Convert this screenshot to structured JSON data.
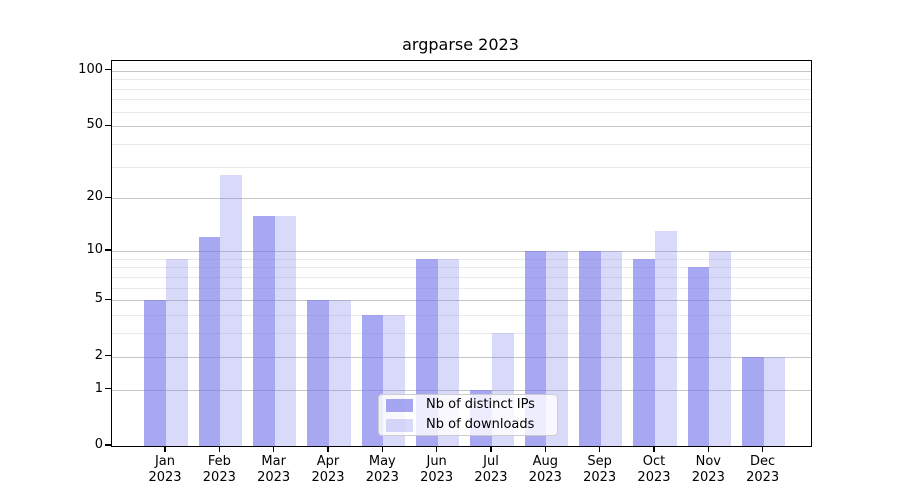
{
  "chart_data": {
    "type": "bar",
    "title": "argparse 2023",
    "categories": [
      "Jan",
      "Feb",
      "Mar",
      "Apr",
      "May",
      "Jun",
      "Jul",
      "Aug",
      "Sep",
      "Oct",
      "Nov",
      "Dec"
    ],
    "year_label": "2023",
    "series": [
      {
        "name": "Nb of distinct IPs",
        "values": [
          5,
          12,
          16,
          5,
          4,
          9,
          1,
          10,
          10,
          9,
          8,
          2
        ],
        "color": "rgba(120,120,235,0.65)"
      },
      {
        "name": "Nb of downloads",
        "values": [
          9,
          27,
          16,
          5,
          4,
          9,
          3,
          10,
          10,
          13,
          10,
          2
        ],
        "color": "rgba(120,120,235,0.28)"
      }
    ],
    "xlabel": "",
    "ylabel": "",
    "yscale": "log1p",
    "ylim": [
      0,
      113
    ],
    "y_major_ticks": [
      0,
      1,
      2,
      5,
      10,
      20,
      50,
      100
    ],
    "y_minor_ticks": [
      3,
      4,
      6,
      7,
      8,
      9,
      30,
      40,
      60,
      70,
      80,
      90
    ],
    "grid": "horizontal-on",
    "legend_position": "lower-center-inside"
  },
  "colors": {
    "bar_ips": "rgba(120,120,235,0.65)",
    "bar_downloads": "rgba(120,120,235,0.28)",
    "grid_major": "#c6c6c6",
    "grid_minor": "#eaeaea",
    "spine": "#000000",
    "text": "#000000",
    "legend_border": "#cccccc",
    "legend_background": "rgba(255,255,255,0.8)"
  }
}
